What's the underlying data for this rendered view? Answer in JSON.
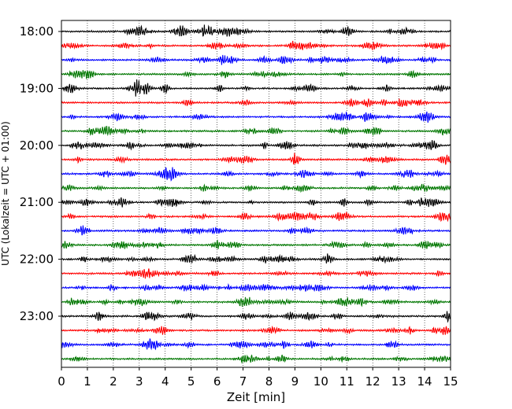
{
  "chart_data": {
    "type": "line",
    "title": "",
    "xlabel": "Zeit  [min]",
    "ylabel": "UTC (Lokalzeit = UTC + 01:00)",
    "xlim": [
      0,
      15
    ],
    "x_ticks": [
      "0",
      "1",
      "2",
      "3",
      "4",
      "5",
      "6",
      "7",
      "8",
      "9",
      "10",
      "11",
      "12",
      "13",
      "14",
      "15"
    ],
    "y_ticks": [
      "18:00",
      "19:00",
      "20:00",
      "21:00",
      "22:00",
      "23:00"
    ],
    "grid": "vertical dotted at each minute",
    "row_interval_minutes": 15,
    "row_colors": [
      "#000000",
      "#ff0000",
      "#0000ff",
      "#007700"
    ],
    "rows": [
      {
        "start": "18:00",
        "color": "#000000"
      },
      {
        "start": "18:15",
        "color": "#ff0000"
      },
      {
        "start": "18:30",
        "color": "#0000ff"
      },
      {
        "start": "18:45",
        "color": "#007700"
      },
      {
        "start": "19:00",
        "color": "#000000"
      },
      {
        "start": "19:15",
        "color": "#ff0000"
      },
      {
        "start": "19:30",
        "color": "#0000ff"
      },
      {
        "start": "19:45",
        "color": "#007700"
      },
      {
        "start": "20:00",
        "color": "#000000"
      },
      {
        "start": "20:15",
        "color": "#ff0000"
      },
      {
        "start": "20:30",
        "color": "#0000ff"
      },
      {
        "start": "20:45",
        "color": "#007700"
      },
      {
        "start": "21:00",
        "color": "#000000"
      },
      {
        "start": "21:15",
        "color": "#ff0000"
      },
      {
        "start": "21:30",
        "color": "#0000ff"
      },
      {
        "start": "21:45",
        "color": "#007700"
      },
      {
        "start": "22:00",
        "color": "#000000"
      },
      {
        "start": "22:15",
        "color": "#ff0000"
      },
      {
        "start": "22:30",
        "color": "#0000ff"
      },
      {
        "start": "22:45",
        "color": "#007700"
      },
      {
        "start": "23:00",
        "color": "#000000"
      },
      {
        "start": "23:15",
        "color": "#ff0000"
      },
      {
        "start": "23:30",
        "color": "#0000ff"
      },
      {
        "start": "23:45",
        "color": "#007700"
      }
    ]
  }
}
